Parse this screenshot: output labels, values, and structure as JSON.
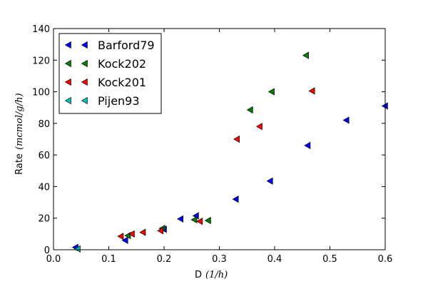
{
  "chart_data": {
    "type": "scatter",
    "xlabel_text": "D",
    "xlabel_unit": "(1/h)",
    "ylabel_text": "Rate",
    "ylabel_unit": "(mcmol/g/h)",
    "xlim": [
      0.0,
      0.6
    ],
    "ylim": [
      0,
      140
    ],
    "x_ticks": [
      0.0,
      0.1,
      0.2,
      0.3,
      0.4,
      0.5,
      0.6
    ],
    "x_tick_labels": [
      "0.0",
      "0.1",
      "0.2",
      "0.3",
      "0.4",
      "0.5",
      "0.6"
    ],
    "y_ticks": [
      0,
      20,
      40,
      60,
      80,
      100,
      120,
      140
    ],
    "y_tick_labels": [
      "0",
      "20",
      "40",
      "60",
      "80",
      "100",
      "120",
      "140"
    ],
    "grid": false,
    "legend_position": "top-left",
    "marker": "triangle-left",
    "series": [
      {
        "name": "Barford79",
        "color": "#0000ff",
        "x": [
          0.04,
          0.13,
          0.2,
          0.23,
          0.258,
          0.33,
          0.392,
          0.46,
          0.53,
          0.6
        ],
        "y": [
          1.5,
          6,
          13,
          19.5,
          21.5,
          32,
          43.5,
          66,
          82,
          91
        ]
      },
      {
        "name": "Kock202",
        "color": "#008000",
        "x": [
          0.135,
          0.197,
          0.255,
          0.28,
          0.356,
          0.395,
          0.457
        ],
        "y": [
          9,
          13.5,
          19,
          18.5,
          88.5,
          100,
          123
        ]
      },
      {
        "name": "Kock201",
        "color": "#ff0000",
        "x": [
          0.122,
          0.142,
          0.162,
          0.194,
          0.265,
          0.332,
          0.373,
          0.468
        ],
        "y": [
          8.5,
          10,
          11,
          12,
          18,
          70,
          78,
          100.5
        ]
      },
      {
        "name": "Pijen93",
        "color": "#00bfbf",
        "x": [
          0.044
        ],
        "y": [
          0.5
        ]
      }
    ]
  }
}
